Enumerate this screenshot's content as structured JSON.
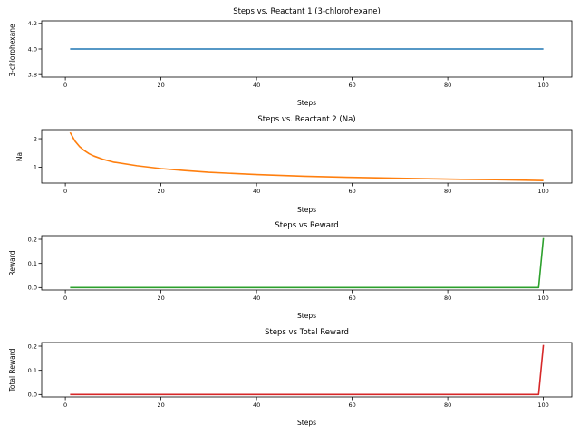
{
  "chart_data": [
    {
      "type": "line",
      "title": "Steps vs. Reactant 1 (3-chlorohexane)",
      "xlabel": "Steps",
      "ylabel": "3-chlorohexane",
      "xlim": [
        -4.95,
        105.95
      ],
      "ylim": [
        3.78,
        4.22
      ],
      "xticks": [
        0,
        20,
        40,
        60,
        80,
        100
      ],
      "yticks": [
        3.8,
        4.0,
        4.2
      ],
      "ytick_labels": [
        "3.8",
        "4.0",
        "4.2"
      ],
      "color": "#1f77b4",
      "x": [
        1,
        100
      ],
      "y": [
        4.0,
        4.0
      ]
    },
    {
      "type": "line",
      "title": "Steps vs. Reactant 2 (Na)",
      "xlabel": "Steps",
      "ylabel": "Na",
      "xlim": [
        -4.95,
        105.95
      ],
      "ylim": [
        0.44,
        2.32
      ],
      "xticks": [
        0,
        20,
        40,
        60,
        80,
        100
      ],
      "yticks": [
        1,
        2
      ],
      "ytick_labels": [
        "1",
        "2"
      ],
      "color": "#ff7f0e",
      "x": [
        1,
        2,
        3,
        4,
        5,
        6,
        8,
        10,
        15,
        20,
        25,
        30,
        40,
        50,
        60,
        70,
        80,
        90,
        100
      ],
      "y": [
        2.22,
        1.92,
        1.72,
        1.58,
        1.47,
        1.39,
        1.27,
        1.18,
        1.05,
        0.95,
        0.88,
        0.82,
        0.74,
        0.68,
        0.64,
        0.61,
        0.58,
        0.56,
        0.53
      ]
    },
    {
      "type": "line",
      "title": "Steps vs Reward",
      "xlabel": "Steps",
      "ylabel": "Reward",
      "xlim": [
        -4.95,
        105.95
      ],
      "ylim": [
        -0.01,
        0.215
      ],
      "xticks": [
        0,
        20,
        40,
        60,
        80,
        100
      ],
      "yticks": [
        0.0,
        0.1,
        0.2
      ],
      "ytick_labels": [
        "0.0",
        "0.1",
        "0.2"
      ],
      "color": "#2ca02c",
      "x": [
        1,
        99,
        100
      ],
      "y": [
        0.0,
        0.0,
        0.205
      ]
    },
    {
      "type": "line",
      "title": "Steps vs Total Reward",
      "xlabel": "Steps",
      "ylabel": "Total Reward",
      "xlim": [
        -4.95,
        105.95
      ],
      "ylim": [
        -0.01,
        0.215
      ],
      "xticks": [
        0,
        20,
        40,
        60,
        80,
        100
      ],
      "yticks": [
        0.0,
        0.1,
        0.2
      ],
      "ytick_labels": [
        "0.0",
        "0.1",
        "0.2"
      ],
      "color": "#d62728",
      "x": [
        1,
        99,
        100
      ],
      "y": [
        0.0,
        0.0,
        0.205
      ]
    }
  ]
}
